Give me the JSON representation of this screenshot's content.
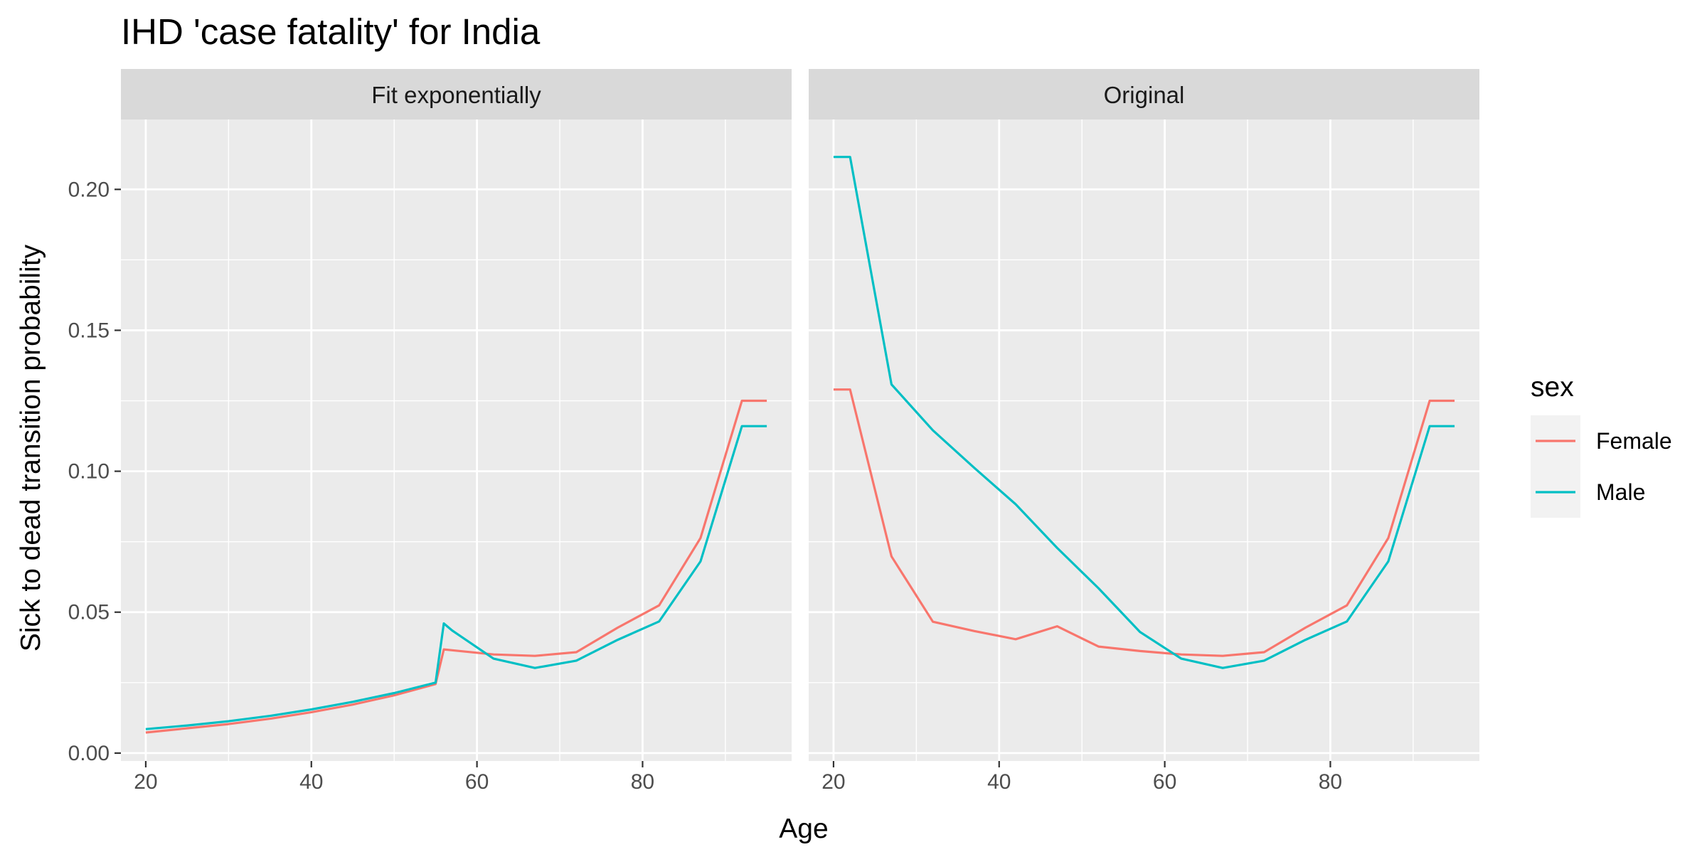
{
  "chart_data": {
    "type": "line",
    "title": "IHD 'case fatality' for India",
    "xlabel": "Age",
    "ylabel": "Sick to dead transition probability",
    "xlim": [
      17,
      98
    ],
    "ylim": [
      -0.0028,
      0.2248
    ],
    "x_ticks": [
      20,
      40,
      60,
      80
    ],
    "y_ticks": [
      0.0,
      0.05,
      0.1,
      0.15,
      0.2
    ],
    "y_tick_labels": [
      "0.00",
      "0.05",
      "0.10",
      "0.15",
      "0.20"
    ],
    "grid": true,
    "legend": {
      "title": "sex",
      "position": "right",
      "entries": [
        {
          "label": "Female",
          "color": "#F8766D"
        },
        {
          "label": "Male",
          "color": "#00BFC4"
        }
      ]
    },
    "colors": {
      "panel_background": "#EBEBEB",
      "grid": "#FFFFFF",
      "strip_background": "#D9D9D9",
      "legend_key_background": "#F2F2F2"
    },
    "panels": [
      {
        "label": "Fit exponentially",
        "series": [
          {
            "name": "Female",
            "color": "#F8766D",
            "x": [
              20,
              25,
              30,
              35,
              40,
              45,
              50,
              55,
              56,
              57,
              62,
              67,
              72,
              77,
              82,
              87,
              92,
              95
            ],
            "y": [
              0.0073,
              0.0088,
              0.0103,
              0.0122,
              0.0145,
              0.0172,
              0.0205,
              0.0245,
              0.0368,
              0.0365,
              0.035,
              0.0345,
              0.0358,
              0.0445,
              0.0524,
              0.0763,
              0.125,
              0.125
            ]
          },
          {
            "name": "Male",
            "color": "#00BFC4",
            "x": [
              20,
              25,
              30,
              35,
              40,
              45,
              50,
              55,
              56,
              57,
              62,
              67,
              72,
              77,
              82,
              87,
              92,
              95
            ],
            "y": [
              0.0085,
              0.0098,
              0.0113,
              0.0132,
              0.0155,
              0.0182,
              0.0213,
              0.025,
              0.046,
              0.0435,
              0.0335,
              0.0302,
              0.0328,
              0.0402,
              0.0467,
              0.068,
              0.116,
              0.116
            ]
          }
        ]
      },
      {
        "label": "Original",
        "series": [
          {
            "name": "Female",
            "color": "#F8766D",
            "x": [
              20,
              22,
              27,
              32,
              37,
              42,
              47,
              52,
              57,
              62,
              67,
              72,
              77,
              82,
              87,
              92,
              95
            ],
            "y": [
              0.129,
              0.129,
              0.0698,
              0.0466,
              0.0433,
              0.0404,
              0.045,
              0.0378,
              0.0362,
              0.035,
              0.0345,
              0.0358,
              0.0445,
              0.0524,
              0.0763,
              0.125,
              0.125
            ]
          },
          {
            "name": "Male",
            "color": "#00BFC4",
            "x": [
              20,
              22,
              27,
              32,
              37,
              42,
              47,
              52,
              57,
              62,
              67,
              72,
              77,
              82,
              87,
              92,
              95
            ],
            "y": [
              0.2115,
              0.2115,
              0.1308,
              0.1145,
              0.1012,
              0.0883,
              0.0728,
              0.0585,
              0.043,
              0.0335,
              0.0302,
              0.0328,
              0.0402,
              0.0467,
              0.068,
              0.116,
              0.116
            ]
          }
        ]
      }
    ]
  }
}
